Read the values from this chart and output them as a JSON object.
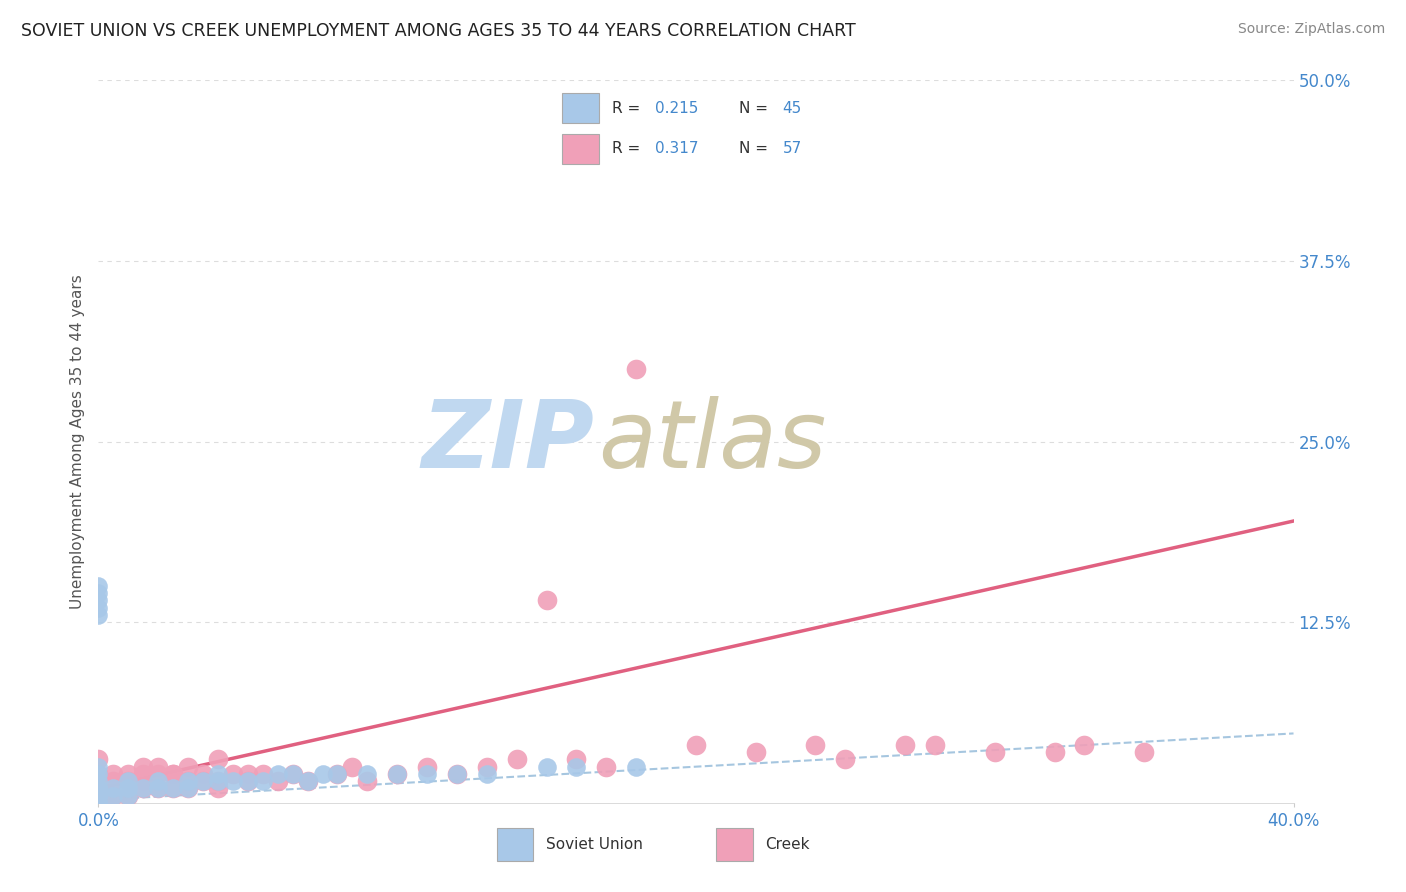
{
  "title": "SOVIET UNION VS CREEK UNEMPLOYMENT AMONG AGES 35 TO 44 YEARS CORRELATION CHART",
  "source": "Source: ZipAtlas.com",
  "ylabel": "Unemployment Among Ages 35 to 44 years",
  "xlim": [
    0.0,
    0.4
  ],
  "ylim": [
    0.0,
    0.5
  ],
  "ytick_positions": [
    0.0,
    0.125,
    0.25,
    0.375,
    0.5
  ],
  "ytick_labels": [
    "",
    "12.5%",
    "25.0%",
    "37.5%",
    "50.0%"
  ],
  "legend_r1": "0.215",
  "legend_n1": "45",
  "legend_r2": "0.317",
  "legend_n2": "57",
  "soviet_color": "#a8c8e8",
  "creek_color": "#f0a0b8",
  "soviet_trend_color": "#90b8d8",
  "creek_trend_color": "#e06080",
  "title_color": "#222222",
  "tick_color": "#4488cc",
  "watermark_zip_color": "#c0d8f0",
  "watermark_atlas_color": "#d0c8a8",
  "grid_color": "#dddddd",
  "background_color": "#ffffff",
  "soviet_x": [
    0.0,
    0.0,
    0.0,
    0.0,
    0.0,
    0.0,
    0.0,
    0.0,
    0.0,
    0.0,
    0.0,
    0.0,
    0.0,
    0.0,
    0.0,
    0.005,
    0.005,
    0.01,
    0.01,
    0.01,
    0.015,
    0.02,
    0.02,
    0.025,
    0.03,
    0.03,
    0.035,
    0.04,
    0.04,
    0.045,
    0.05,
    0.055,
    0.06,
    0.065,
    0.07,
    0.075,
    0.08,
    0.09,
    0.1,
    0.11,
    0.12,
    0.13,
    0.15,
    0.16,
    0.18
  ],
  "soviet_y": [
    0.0,
    0.0,
    0.0,
    0.005,
    0.005,
    0.01,
    0.01,
    0.015,
    0.02,
    0.025,
    0.13,
    0.135,
    0.14,
    0.145,
    0.15,
    0.005,
    0.01,
    0.005,
    0.01,
    0.015,
    0.01,
    0.01,
    0.015,
    0.01,
    0.01,
    0.015,
    0.015,
    0.015,
    0.02,
    0.015,
    0.015,
    0.015,
    0.02,
    0.02,
    0.015,
    0.02,
    0.02,
    0.02,
    0.02,
    0.02,
    0.02,
    0.02,
    0.025,
    0.025,
    0.025
  ],
  "creek_x": [
    0.0,
    0.0,
    0.0,
    0.0,
    0.005,
    0.005,
    0.01,
    0.01,
    0.015,
    0.015,
    0.015,
    0.02,
    0.02,
    0.025,
    0.025,
    0.03,
    0.03,
    0.035,
    0.035,
    0.04,
    0.04,
    0.045,
    0.05,
    0.05,
    0.055,
    0.06,
    0.065,
    0.07,
    0.08,
    0.085,
    0.09,
    0.1,
    0.11,
    0.12,
    0.13,
    0.14,
    0.15,
    0.16,
    0.17,
    0.18,
    0.2,
    0.22,
    0.24,
    0.25,
    0.27,
    0.28,
    0.3,
    0.32,
    0.33,
    0.35,
    0.005,
    0.01,
    0.015,
    0.02,
    0.025,
    0.03,
    0.04
  ],
  "creek_y": [
    0.005,
    0.01,
    0.02,
    0.03,
    0.005,
    0.02,
    0.005,
    0.015,
    0.01,
    0.015,
    0.02,
    0.01,
    0.02,
    0.01,
    0.02,
    0.01,
    0.015,
    0.015,
    0.02,
    0.01,
    0.015,
    0.02,
    0.015,
    0.02,
    0.02,
    0.015,
    0.02,
    0.015,
    0.02,
    0.025,
    0.015,
    0.02,
    0.025,
    0.02,
    0.025,
    0.03,
    0.14,
    0.03,
    0.025,
    0.3,
    0.04,
    0.035,
    0.04,
    0.03,
    0.04,
    0.04,
    0.035,
    0.035,
    0.04,
    0.035,
    0.015,
    0.02,
    0.025,
    0.025,
    0.02,
    0.025,
    0.03
  ],
  "soviet_trend_start_y": 0.002,
  "soviet_trend_end_y": 0.048,
  "creek_trend_start_y": 0.01,
  "creek_trend_end_y": 0.195
}
